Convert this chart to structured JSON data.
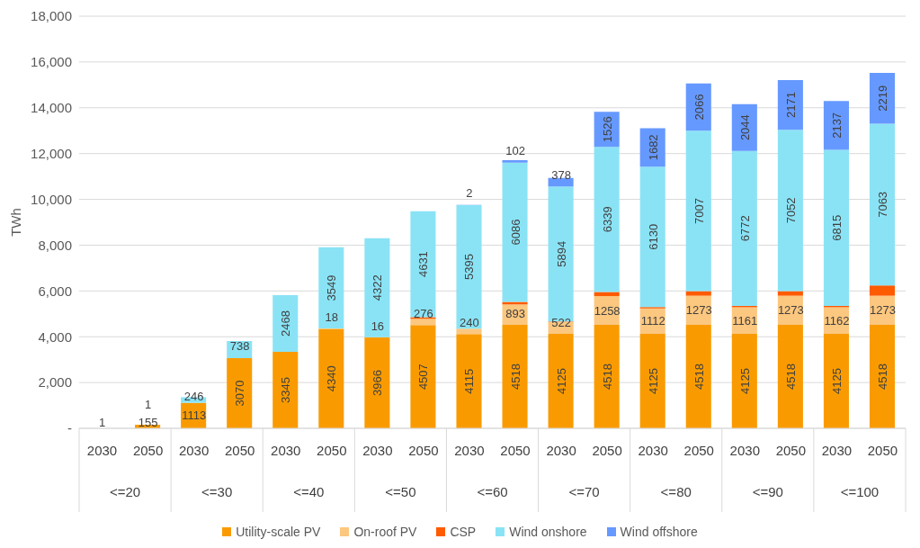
{
  "chart_data": {
    "type": "bar",
    "stacked": true,
    "ylabel": "TWh",
    "categories": [
      "2030",
      "2050",
      "2030",
      "2050",
      "2030",
      "2050",
      "2030",
      "2050",
      "2030",
      "2050",
      "2030",
      "2050",
      "2030",
      "2050",
      "2030",
      "2050",
      "2030",
      "2050"
    ],
    "annotations": [
      "<=20",
      "<=30",
      "<=40",
      "<=50",
      "<=60",
      "<=70",
      "<=80",
      "<=90",
      "<=100"
    ],
    "ylim": [
      0,
      18000
    ],
    "yticks": [
      {
        "value": 0,
        "label": "-"
      },
      {
        "value": 2000,
        "label": "2,000"
      },
      {
        "value": 4000,
        "label": "4,000"
      },
      {
        "value": 6000,
        "label": "6,000"
      },
      {
        "value": 8000,
        "label": "8,000"
      },
      {
        "value": 10000,
        "label": "10,000"
      },
      {
        "value": 12000,
        "label": "12,000"
      },
      {
        "value": 14000,
        "label": "14,000"
      },
      {
        "value": 16000,
        "label": "16,000"
      },
      {
        "value": 18000,
        "label": "18,000"
      }
    ],
    "grid": "y",
    "legend": "bottom",
    "series": [
      {
        "name": "Utility-scale PV",
        "color": "#f99b00",
        "values": [
          1,
          155,
          1113,
          3070,
          3345,
          4340,
          3966,
          4507,
          4115,
          4518,
          4125,
          4518,
          4125,
          4518,
          4125,
          4518,
          4125,
          4518
        ],
        "value_labels": [
          "1",
          "155",
          "1113",
          "3070",
          "3345",
          "4340",
          "3966",
          "4507",
          "4115",
          "4518",
          "4125",
          "4518",
          "4125",
          "4518",
          "4125",
          "4518",
          "4125",
          "4518"
        ]
      },
      {
        "name": "On-roof PV",
        "color": "#fcc77f",
        "values": [
          0,
          0,
          0,
          0,
          0,
          18,
          16,
          276,
          240,
          893,
          522,
          1258,
          1112,
          1273,
          1161,
          1273,
          1162,
          1273
        ],
        "value_labels": [
          null,
          null,
          null,
          null,
          null,
          "18",
          "16",
          "276",
          "240",
          "893",
          "522",
          "1258",
          "1112",
          "1273",
          "1161",
          "1273",
          "1162",
          "1273"
        ]
      },
      {
        "name": "CSP",
        "color": "#ff5b00",
        "values": [
          0,
          0,
          0,
          0,
          0,
          0,
          0,
          70,
          0,
          110,
          20,
          180,
          60,
          200,
          60,
          200,
          60,
          450
        ]
      },
      {
        "name": "Wind onshore",
        "color": "#8ae3f5",
        "values": [
          0,
          1,
          246,
          738,
          2468,
          3549,
          4322,
          4631,
          5395,
          6086,
          5894,
          6339,
          6130,
          7007,
          6772,
          7052,
          6815,
          7063
        ],
        "value_labels": [
          null,
          "1",
          "246",
          "738",
          "2468",
          "3549",
          "4322",
          "4631",
          "5395",
          "6086",
          "5894",
          "6339",
          "6130",
          "7007",
          "6772",
          "7052",
          "6815",
          "7063"
        ]
      },
      {
        "name": "Wind offshore",
        "color": "#6699ff",
        "values": [
          0,
          0,
          0,
          0,
          0,
          0,
          0,
          0,
          2,
          102,
          378,
          1526,
          1682,
          2066,
          2044,
          2171,
          2137,
          2219
        ],
        "value_labels": [
          null,
          null,
          null,
          null,
          null,
          null,
          null,
          null,
          "2",
          "102",
          "378",
          "1526",
          "1682",
          "2066",
          "2044",
          "2171",
          "2137",
          "2219"
        ]
      }
    ]
  }
}
